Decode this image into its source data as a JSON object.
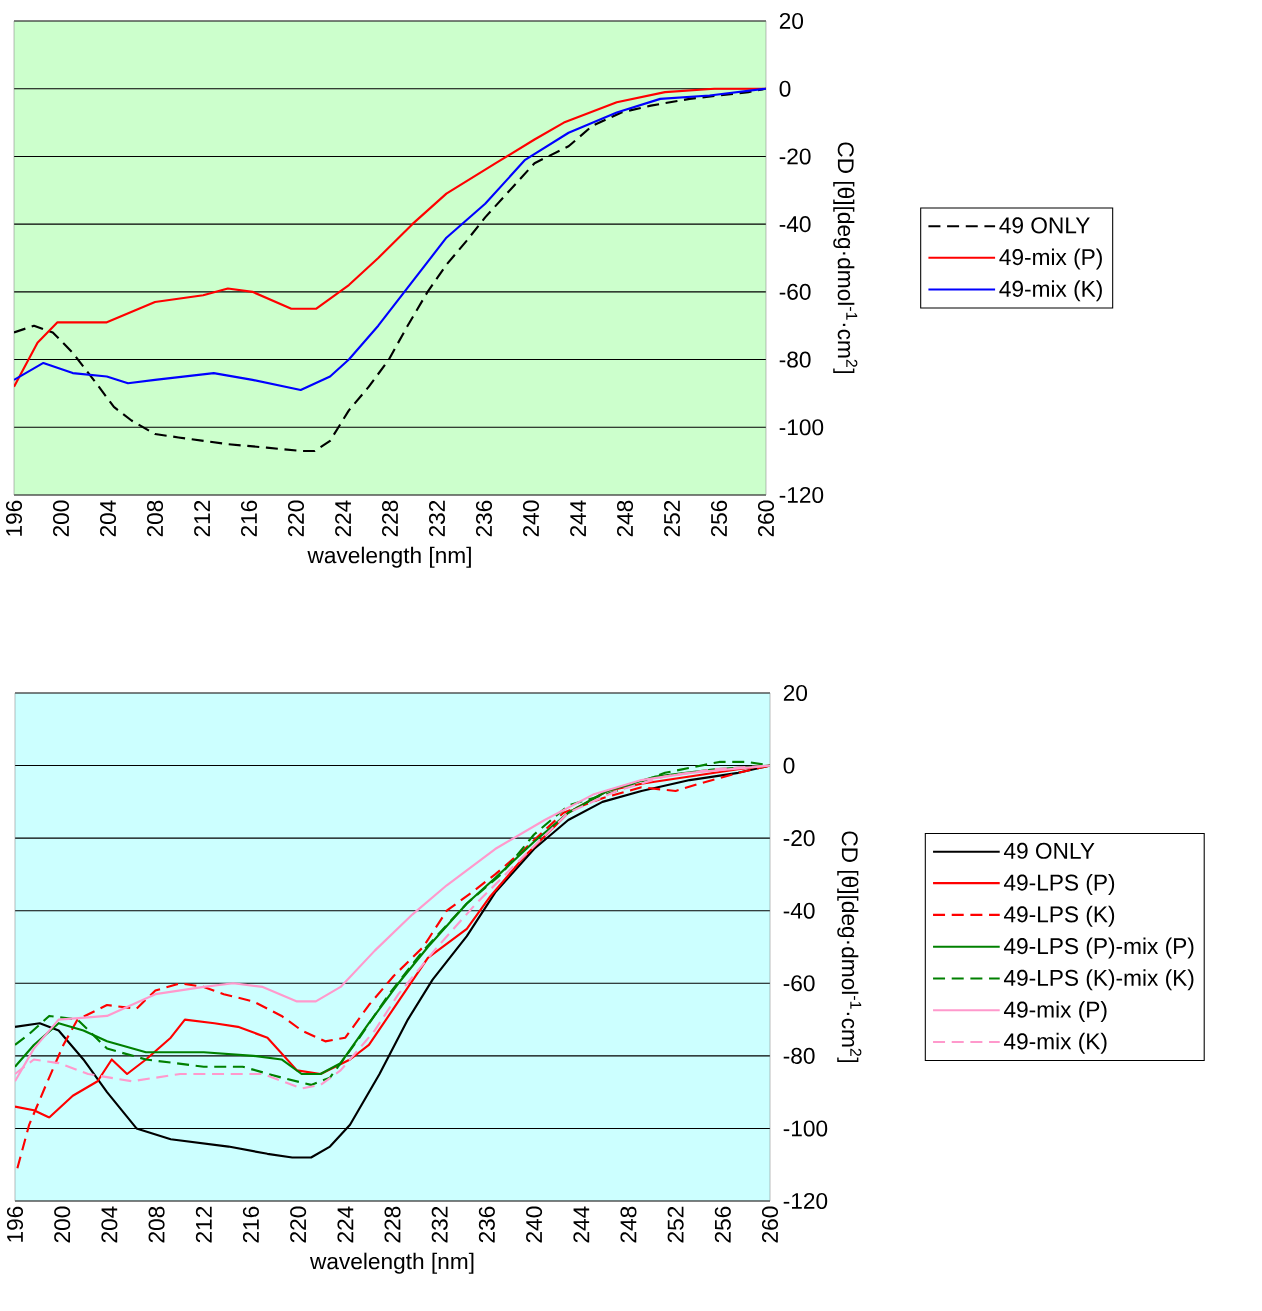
{
  "chart_data": [
    {
      "type": "line",
      "xlabel": "wavelength [nm]",
      "ylabel": "CD [θ][deg·dmol$^{-1}$·cm$^{2}$]",
      "xlim": [
        196,
        260
      ],
      "ylim": [
        -120,
        20
      ],
      "xticks": [
        196,
        200,
        204,
        208,
        212,
        216,
        220,
        224,
        228,
        232,
        236,
        240,
        244,
        248,
        252,
        256,
        260
      ],
      "yticks": [
        -120,
        -100,
        -80,
        -60,
        -40,
        -20,
        0,
        20
      ],
      "grid": "y",
      "legend": "right",
      "series": [
        {
          "name": "49 ONLY",
          "color": "#000000",
          "line_style": "dashed",
          "x": [
            196,
            197.7,
            199.3,
            201,
            203,
            204.5,
            206,
            208,
            210,
            214.2,
            217.5,
            220.4,
            221.6,
            222.9,
            224.5,
            226.2,
            227.9,
            229.5,
            231.2,
            232.8,
            234.5,
            236.1,
            238.2,
            240.3,
            243.2,
            245.2,
            247.7,
            250.2,
            253.5,
            256,
            258.5,
            260
          ],
          "values": [
            -72,
            -70,
            -72,
            -78,
            -87,
            -94,
            -98,
            -102,
            -103,
            -105,
            -106,
            -107,
            -107,
            -104,
            -95,
            -88,
            -80,
            -70,
            -60,
            -52,
            -45,
            -38,
            -30,
            -22,
            -17,
            -11,
            -7,
            -5,
            -3,
            -2,
            -1,
            0
          ]
        },
        {
          "name": "49-mix (P)",
          "color": "#ff0000",
          "line_style": "solid",
          "x": [
            196,
            198,
            199.7,
            203.9,
            208,
            212.1,
            214.2,
            216.3,
            219.6,
            221.7,
            224.5,
            227,
            229.9,
            232.8,
            237,
            240.3,
            242.8,
            247.3,
            251.4,
            255.6,
            260
          ],
          "values": [
            -88,
            -75,
            -69,
            -69,
            -63,
            -61,
            -59,
            -60,
            -65,
            -65,
            -58,
            -50,
            -40,
            -31,
            -22,
            -15,
            -10,
            -4,
            -1,
            0,
            0
          ]
        },
        {
          "name": "49-mix (K)",
          "color": "#0000ff",
          "line_style": "solid",
          "x": [
            196,
            198.5,
            201,
            203.9,
            205.7,
            208,
            213,
            216.3,
            220.4,
            222.9,
            224.5,
            227,
            229.9,
            232.8,
            236.1,
            239.5,
            243.2,
            247.3,
            251,
            255.2,
            260
          ],
          "values": [
            -86,
            -81,
            -84,
            -85,
            -87,
            -86,
            -84,
            -86,
            -89,
            -85,
            -80,
            -70,
            -57,
            -44,
            -34,
            -21,
            -13,
            -7,
            -3,
            -2,
            0
          ]
        }
      ]
    },
    {
      "type": "line",
      "xlabel": "wavelength [nm]",
      "ylabel": "CD [θ][deg·dmol$^{-1}$·cm$^{2}$]",
      "xlim": [
        196,
        260
      ],
      "ylim": [
        -120,
        20
      ],
      "xticks": [
        196,
        200,
        204,
        208,
        212,
        216,
        220,
        224,
        228,
        232,
        236,
        240,
        244,
        248,
        252,
        256,
        260
      ],
      "yticks": [
        -120,
        -100,
        -80,
        -60,
        -40,
        -20,
        0,
        20
      ],
      "grid": "y",
      "legend": "right",
      "series": [
        {
          "name": "49 ONLY",
          "color": "#000000",
          "line_style": "solid",
          "x": [
            196,
            198.1,
            199.7,
            201.8,
            203.8,
            206.3,
            209.2,
            214.1,
            217.4,
            219.5,
            221.1,
            222.7,
            224.4,
            226.9,
            229.3,
            231.4,
            234.3,
            236.7,
            240,
            242.9,
            245.8,
            249.1,
            253.2,
            257.3,
            260
          ],
          "values": [
            -72,
            -71,
            -73,
            -81,
            -90,
            -100,
            -103,
            -105,
            -107,
            -108,
            -108,
            -105,
            -99,
            -85,
            -70,
            -59,
            -47,
            -35,
            -23,
            -15,
            -10,
            -7,
            -4,
            -2,
            0
          ]
        },
        {
          "name": "49-LPS (P)",
          "color": "#ff0000",
          "line_style": "solid",
          "x": [
            196,
            197.6,
            198.9,
            200.9,
            203,
            204.2,
            205.5,
            207.1,
            209.2,
            210.4,
            212.9,
            214.9,
            217.4,
            219.9,
            221.9,
            224.4,
            226,
            228.5,
            231,
            234.3,
            236.3,
            239.2,
            242.9,
            246.2,
            249.1,
            253.2,
            257.3,
            260
          ],
          "values": [
            -94,
            -95,
            -97,
            -91,
            -87,
            -81,
            -85,
            -81,
            -75,
            -70,
            -71,
            -72,
            -75,
            -84,
            -85,
            -81,
            -77,
            -65,
            -53,
            -45,
            -36,
            -25,
            -13,
            -7,
            -5,
            -3,
            -1,
            0
          ]
        },
        {
          "name": "49-LPS (K)",
          "color": "#ff0000",
          "line_style": "dashed",
          "x": [
            196.2,
            197.2,
            198.5,
            200.1,
            201.3,
            203.8,
            206.3,
            207.9,
            210,
            212,
            213.7,
            216.2,
            218.6,
            220.3,
            222.3,
            224,
            226,
            228.1,
            230.6,
            232.6,
            234.7,
            236.7,
            239.2,
            242.5,
            245.8,
            249.1,
            252,
            254,
            257.3,
            260
          ],
          "values": [
            -111,
            -99,
            -89,
            -77,
            -70,
            -66,
            -67,
            -62,
            -60,
            -61,
            -63,
            -65,
            -69,
            -73,
            -76,
            -75,
            -66,
            -58,
            -50,
            -40,
            -35,
            -30,
            -23,
            -13,
            -9,
            -6,
            -7,
            -5,
            -2,
            0
          ]
        },
        {
          "name": "49-LPS (P)-mix (P)",
          "color": "#008000",
          "line_style": "solid",
          "x": [
            196,
            197.6,
            199.7,
            201.8,
            203.8,
            207.1,
            212,
            216.2,
            218.6,
            220.3,
            221.9,
            223.6,
            226,
            228.5,
            231,
            234.3,
            236.7,
            240,
            242.9,
            246.2,
            250.3,
            255.3,
            260
          ],
          "values": [
            -83,
            -77,
            -71,
            -73,
            -76,
            -79,
            -79,
            -80,
            -81,
            -85,
            -85,
            -82,
            -71,
            -60,
            -50,
            -38,
            -31,
            -21,
            -13,
            -7,
            -3,
            -1,
            0
          ]
        },
        {
          "name": "49-LPS (K)-mix (K)",
          "color": "#008000",
          "line_style": "dashed",
          "x": [
            196,
            197.2,
            198.9,
            201.3,
            203.8,
            207.1,
            212,
            215.3,
            218.6,
            221.1,
            222.7,
            225.2,
            227.7,
            230.6,
            234.3,
            237.2,
            240,
            242.9,
            247,
            251.1,
            255.7,
            258.1,
            260
          ],
          "values": [
            -77,
            -74,
            -69,
            -70,
            -78,
            -81,
            -83,
            -83,
            -86,
            -88,
            -86,
            -75,
            -63,
            -51,
            -38,
            -30,
            -19,
            -11,
            -7,
            -2,
            1,
            1,
            0
          ]
        },
        {
          "name": "49-mix (P)",
          "color": "#ff99cc",
          "line_style": "solid",
          "x": [
            196,
            197.6,
            199.7,
            203.8,
            207.9,
            212,
            214.5,
            217,
            219.9,
            221.5,
            223.6,
            226.5,
            229.7,
            232.6,
            236.7,
            240.9,
            245,
            249.1,
            253.2,
            260
          ],
          "values": [
            -87,
            -78,
            -70,
            -69,
            -63,
            -61,
            -60,
            -61,
            -65,
            -65,
            -61,
            -51,
            -41,
            -33,
            -23,
            -15,
            -8,
            -4,
            -2,
            0
          ]
        },
        {
          "name": "49-mix (K)",
          "color": "#ff99cc",
          "line_style": "dashed",
          "x": [
            196,
            197.6,
            199.7,
            202.2,
            205.9,
            210,
            214.1,
            217,
            220.3,
            221.9,
            223.6,
            226.5,
            228.5,
            231.8,
            235.1,
            238.8,
            242.9,
            247,
            251.1,
            255.3,
            260
          ],
          "values": [
            -85,
            -81,
            -82,
            -85,
            -87,
            -85,
            -85,
            -85,
            -89,
            -88,
            -84,
            -73,
            -63,
            -50,
            -38,
            -26,
            -13,
            -7,
            -3,
            -1,
            0
          ]
        }
      ]
    }
  ]
}
